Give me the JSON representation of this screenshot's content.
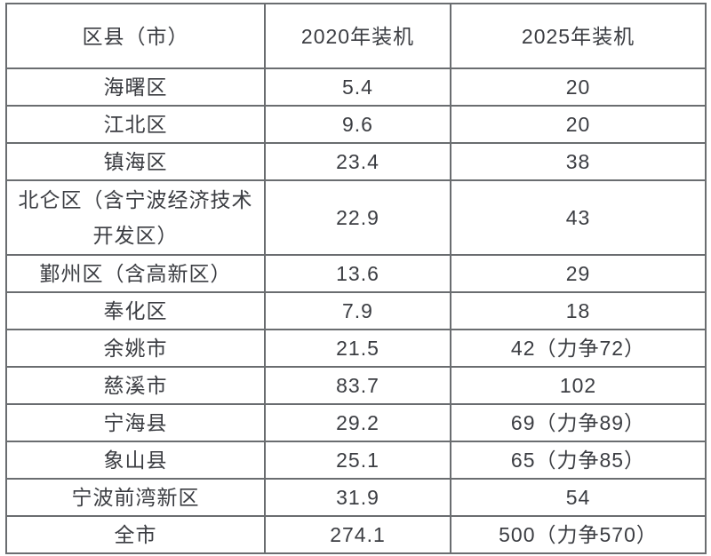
{
  "table": {
    "headers": {
      "region": "区县（市）",
      "y2020": "2020年装机",
      "y2025": "2025年装机"
    },
    "rows": [
      {
        "name": "海曙区",
        "y2020": "5.4",
        "y2025": "20"
      },
      {
        "name": "江北区",
        "y2020": "9.6",
        "y2025": "20"
      },
      {
        "name": "镇海区",
        "y2020": "23.4",
        "y2025": "38"
      },
      {
        "name": "北仑区（含宁波经济技术\n开发区）",
        "y2020": "22.9",
        "y2025": "43"
      },
      {
        "name": "鄞州区（含高新区）",
        "y2020": "13.6",
        "y2025": "29"
      },
      {
        "name": "奉化区",
        "y2020": "7.9",
        "y2025": "18"
      },
      {
        "name": "余姚市",
        "y2020": "21.5",
        "y2025": "42（力争72）"
      },
      {
        "name": "慈溪市",
        "y2020": "83.7",
        "y2025": "102"
      },
      {
        "name": "宁海县",
        "y2020": "29.2",
        "y2025": "69（力争89）"
      },
      {
        "name": "象山县",
        "y2020": "25.1",
        "y2025": "65（力争85）"
      },
      {
        "name": "宁波前湾新区",
        "y2020": "31.9",
        "y2025": "54"
      },
      {
        "name": "全市",
        "y2020": "274.1",
        "y2025": "500（力争570）"
      }
    ],
    "colors": {
      "text": "#3b3d42",
      "border": "#6a6d70",
      "background": "#ffffff"
    }
  },
  "chart_data": {
    "type": "table",
    "title": "",
    "columns": [
      "区县（市）",
      "2020年装机",
      "2025年装机"
    ],
    "categories": [
      "海曙区",
      "江北区",
      "镇海区",
      "北仑区（含宁波经济技术开发区）",
      "鄞州区（含高新区）",
      "奉化区",
      "余姚市",
      "慈溪市",
      "宁海县",
      "象山县",
      "宁波前湾新区",
      "全市"
    ],
    "series": [
      {
        "name": "2020年装机",
        "values": [
          5.4,
          9.6,
          23.4,
          22.9,
          13.6,
          7.9,
          21.5,
          83.7,
          29.2,
          25.1,
          31.9,
          274.1
        ]
      },
      {
        "name": "2025年装机",
        "values": [
          20,
          20,
          38,
          43,
          29,
          18,
          42,
          102,
          69,
          65,
          54,
          500
        ]
      },
      {
        "name": "2025年装机力争",
        "values": [
          null,
          null,
          null,
          null,
          null,
          null,
          72,
          null,
          89,
          85,
          null,
          570
        ]
      }
    ]
  }
}
